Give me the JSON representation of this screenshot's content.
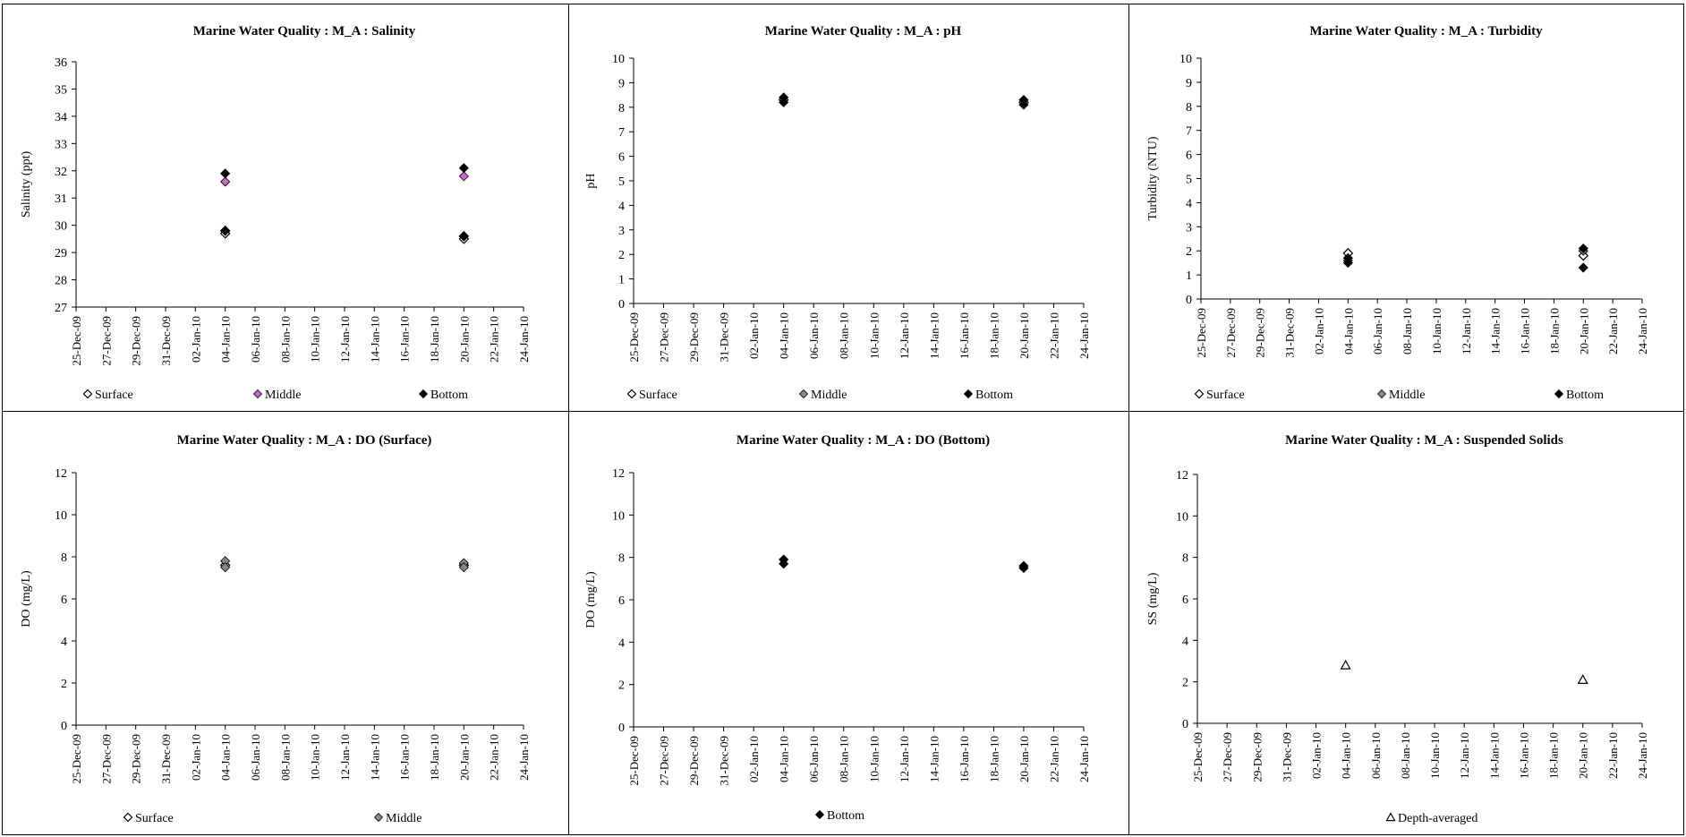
{
  "charts": [
    {
      "title": "Marine Water Quality : M_A : Salinity",
      "ylabel": "Salinity (ppt)",
      "chart_ref": 0
    },
    {
      "title": "Marine Water Quality : M_A : pH",
      "ylabel": "pH",
      "chart_ref": 1
    },
    {
      "title": "Marine Water Quality : M_A : Turbidity",
      "ylabel": "Turbidity (NTU)",
      "chart_ref": 2
    },
    {
      "title": "Marine Water Quality : M_A : DO (Surface)",
      "ylabel": "DO (mg/L)",
      "chart_ref": 3
    },
    {
      "title": "Marine Water Quality : M_A : DO (Bottom)",
      "ylabel": "DO (mg/L)",
      "chart_ref": 4
    },
    {
      "title": "Marine Water Quality : M_A : Suspended Solids",
      "ylabel": "SS (mg/L)",
      "chart_ref": 5
    }
  ],
  "chart_data": [
    {
      "type": "scatter",
      "title": "Marine Water Quality : M_A : Salinity",
      "ylabel": "Salinity (ppt)",
      "xlabel": "",
      "x_ticks": [
        "25-Dec-09",
        "27-Dec-09",
        "29-Dec-09",
        "31-Dec-09",
        "02-Jan-10",
        "04-Jan-10",
        "06-Jan-10",
        "08-Jan-10",
        "10-Jan-10",
        "12-Jan-10",
        "14-Jan-10",
        "16-Jan-10",
        "18-Jan-10",
        "20-Jan-10",
        "22-Jan-10",
        "24-Jan-10"
      ],
      "xlim": [
        "25-Dec-09",
        "24-Jan-10"
      ],
      "ylim": [
        27,
        36
      ],
      "y_ticks": [
        27,
        28,
        29,
        30,
        31,
        32,
        33,
        34,
        35,
        36
      ],
      "legend_position": "bottom",
      "series": [
        {
          "name": "Surface",
          "marker": "diamond-open",
          "color": "#000000",
          "points": [
            {
              "x": "04-Jan-10",
              "y": 29.7
            },
            {
              "x": "04-Jan-10",
              "y": 29.8
            },
            {
              "x": "20-Jan-10",
              "y": 29.5
            },
            {
              "x": "20-Jan-10",
              "y": 29.6
            }
          ]
        },
        {
          "name": "Middle",
          "marker": "diamond-filled",
          "color": "#cc66cc",
          "points": [
            {
              "x": "04-Jan-10",
              "y": 31.6
            },
            {
              "x": "20-Jan-10",
              "y": 31.8
            }
          ]
        },
        {
          "name": "Bottom",
          "marker": "diamond-filled",
          "color": "#000000",
          "points": [
            {
              "x": "04-Jan-10",
              "y": 31.9
            },
            {
              "x": "04-Jan-10",
              "y": 29.8
            },
            {
              "x": "20-Jan-10",
              "y": 32.1
            },
            {
              "x": "20-Jan-10",
              "y": 29.6
            }
          ]
        }
      ]
    },
    {
      "type": "scatter",
      "title": "Marine Water Quality : M_A : pH",
      "ylabel": "pH",
      "xlabel": "",
      "x_ticks": [
        "25-Dec-09",
        "27-Dec-09",
        "29-Dec-09",
        "31-Dec-09",
        "02-Jan-10",
        "04-Jan-10",
        "06-Jan-10",
        "08-Jan-10",
        "10-Jan-10",
        "12-Jan-10",
        "14-Jan-10",
        "16-Jan-10",
        "18-Jan-10",
        "20-Jan-10",
        "22-Jan-10",
        "24-Jan-10"
      ],
      "xlim": [
        "25-Dec-09",
        "24-Jan-10"
      ],
      "ylim": [
        0,
        10
      ],
      "y_ticks": [
        0,
        1,
        2,
        3,
        4,
        5,
        6,
        7,
        8,
        9,
        10
      ],
      "legend_position": "bottom",
      "series": [
        {
          "name": "Surface",
          "marker": "diamond-open",
          "color": "#000000",
          "points": [
            {
              "x": "04-Jan-10",
              "y": 8.3
            },
            {
              "x": "20-Jan-10",
              "y": 8.2
            }
          ]
        },
        {
          "name": "Middle",
          "marker": "diamond-filled",
          "color": "#888888",
          "points": [
            {
              "x": "04-Jan-10",
              "y": 8.3
            },
            {
              "x": "20-Jan-10",
              "y": 8.2
            }
          ]
        },
        {
          "name": "Bottom",
          "marker": "diamond-filled",
          "color": "#000000",
          "points": [
            {
              "x": "04-Jan-10",
              "y": 8.4
            },
            {
              "x": "04-Jan-10",
              "y": 8.2
            },
            {
              "x": "20-Jan-10",
              "y": 8.3
            },
            {
              "x": "20-Jan-10",
              "y": 8.1
            }
          ]
        }
      ]
    },
    {
      "type": "scatter",
      "title": "Marine Water Quality : M_A : Turbidity",
      "ylabel": "Turbidity (NTU)",
      "xlabel": "",
      "x_ticks": [
        "25-Dec-09",
        "27-Dec-09",
        "29-Dec-09",
        "31-Dec-09",
        "02-Jan-10",
        "04-Jan-10",
        "06-Jan-10",
        "08-Jan-10",
        "10-Jan-10",
        "12-Jan-10",
        "14-Jan-10",
        "16-Jan-10",
        "18-Jan-10",
        "20-Jan-10",
        "22-Jan-10",
        "24-Jan-10"
      ],
      "xlim": [
        "25-Dec-09",
        "24-Jan-10"
      ],
      "ylim": [
        0,
        10
      ],
      "y_ticks": [
        0,
        1,
        2,
        3,
        4,
        5,
        6,
        7,
        8,
        9,
        10
      ],
      "legend_position": "bottom",
      "series": [
        {
          "name": "Surface",
          "marker": "diamond-open",
          "color": "#000000",
          "points": [
            {
              "x": "04-Jan-10",
              "y": 1.9
            },
            {
              "x": "20-Jan-10",
              "y": 1.8
            }
          ]
        },
        {
          "name": "Middle",
          "marker": "diamond-filled",
          "color": "#888888",
          "points": [
            {
              "x": "04-Jan-10",
              "y": 1.6
            },
            {
              "x": "20-Jan-10",
              "y": 2.0
            }
          ]
        },
        {
          "name": "Bottom",
          "marker": "diamond-filled",
          "color": "#000000",
          "points": [
            {
              "x": "04-Jan-10",
              "y": 1.5
            },
            {
              "x": "04-Jan-10",
              "y": 1.7
            },
            {
              "x": "20-Jan-10",
              "y": 2.1
            },
            {
              "x": "20-Jan-10",
              "y": 1.3
            }
          ]
        }
      ]
    },
    {
      "type": "scatter",
      "title": "Marine Water Quality : M_A : DO (Surface)",
      "ylabel": "DO (mg/L)",
      "xlabel": "",
      "x_ticks": [
        "25-Dec-09",
        "27-Dec-09",
        "29-Dec-09",
        "31-Dec-09",
        "02-Jan-10",
        "04-Jan-10",
        "06-Jan-10",
        "08-Jan-10",
        "10-Jan-10",
        "12-Jan-10",
        "14-Jan-10",
        "16-Jan-10",
        "18-Jan-10",
        "20-Jan-10",
        "22-Jan-10",
        "24-Jan-10"
      ],
      "xlim": [
        "25-Dec-09",
        "24-Jan-10"
      ],
      "ylim": [
        0,
        12
      ],
      "y_ticks": [
        0,
        2,
        4,
        6,
        8,
        10,
        12
      ],
      "legend_position": "bottom",
      "series": [
        {
          "name": "Surface",
          "marker": "diamond-open",
          "color": "#000000",
          "points": [
            {
              "x": "04-Jan-10",
              "y": 7.6
            },
            {
              "x": "20-Jan-10",
              "y": 7.6
            }
          ]
        },
        {
          "name": "Middle",
          "marker": "diamond-filled",
          "color": "#888888",
          "points": [
            {
              "x": "04-Jan-10",
              "y": 7.8
            },
            {
              "x": "04-Jan-10",
              "y": 7.5
            },
            {
              "x": "20-Jan-10",
              "y": 7.7
            },
            {
              "x": "20-Jan-10",
              "y": 7.5
            }
          ]
        }
      ]
    },
    {
      "type": "scatter",
      "title": "Marine Water Quality : M_A : DO (Bottom)",
      "ylabel": "DO (mg/L)",
      "xlabel": "",
      "x_ticks": [
        "25-Dec-09",
        "27-Dec-09",
        "29-Dec-09",
        "31-Dec-09",
        "02-Jan-10",
        "04-Jan-10",
        "06-Jan-10",
        "08-Jan-10",
        "10-Jan-10",
        "12-Jan-10",
        "14-Jan-10",
        "16-Jan-10",
        "18-Jan-10",
        "20-Jan-10",
        "22-Jan-10",
        "24-Jan-10"
      ],
      "xlim": [
        "25-Dec-09",
        "24-Jan-10"
      ],
      "ylim": [
        0,
        12
      ],
      "y_ticks": [
        0,
        2,
        4,
        6,
        8,
        10,
        12
      ],
      "legend_position": "bottom",
      "series": [
        {
          "name": "Bottom",
          "marker": "diamond-filled",
          "color": "#000000",
          "points": [
            {
              "x": "04-Jan-10",
              "y": 7.9
            },
            {
              "x": "04-Jan-10",
              "y": 7.7
            },
            {
              "x": "20-Jan-10",
              "y": 7.6
            },
            {
              "x": "20-Jan-10",
              "y": 7.5
            }
          ]
        }
      ]
    },
    {
      "type": "scatter",
      "title": "Marine Water Quality : M_A : Suspended Solids",
      "ylabel": "SS (mg/L)",
      "xlabel": "",
      "x_ticks": [
        "25-Dec-09",
        "27-Dec-09",
        "29-Dec-09",
        "31-Dec-09",
        "02-Jan-10",
        "04-Jan-10",
        "06-Jan-10",
        "08-Jan-10",
        "10-Jan-10",
        "12-Jan-10",
        "14-Jan-10",
        "16-Jan-10",
        "18-Jan-10",
        "20-Jan-10",
        "22-Jan-10",
        "24-Jan-10"
      ],
      "xlim": [
        "25-Dec-09",
        "24-Jan-10"
      ],
      "ylim": [
        0,
        12
      ],
      "y_ticks": [
        0,
        2,
        4,
        6,
        8,
        10,
        12
      ],
      "legend_position": "bottom",
      "series": [
        {
          "name": "Depth-averaged",
          "marker": "triangle-open",
          "color": "#000000",
          "points": [
            {
              "x": "04-Jan-10",
              "y": 2.8
            },
            {
              "x": "20-Jan-10",
              "y": 2.1
            }
          ]
        }
      ]
    }
  ]
}
